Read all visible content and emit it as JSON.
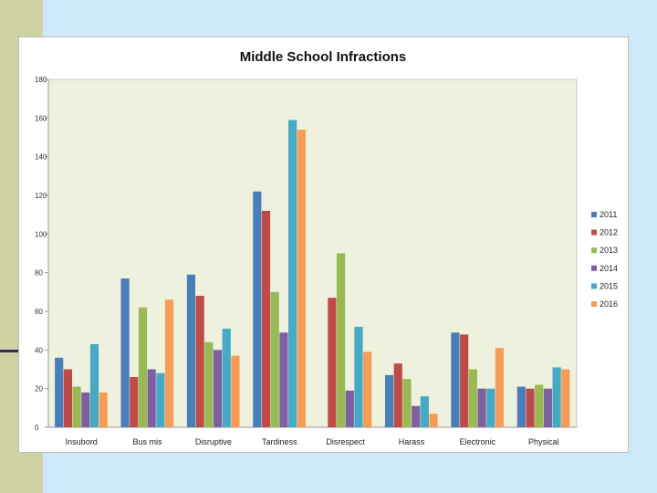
{
  "chart_data": {
    "type": "bar",
    "title": "Middle School Infractions",
    "xlabel": "",
    "ylabel": "",
    "categories": [
      "Insubord",
      "Bus mis",
      "Disruptive",
      "Tardiness",
      "Disrespect",
      "Harass",
      "Electronic",
      "Physical"
    ],
    "yticks": [
      "0",
      "20",
      "40",
      "60",
      "80",
      "100",
      "120",
      "140",
      "160",
      "180"
    ],
    "ylim": [
      0,
      180
    ],
    "grid": false,
    "legend_position": "right",
    "series": [
      {
        "name": "2011",
        "color": "#4a7ebb",
        "values": [
          36,
          77,
          79,
          122,
          0,
          27,
          49,
          21
        ]
      },
      {
        "name": "2012",
        "color": "#be4b48",
        "values": [
          30,
          26,
          68,
          112,
          67,
          33,
          48,
          20
        ]
      },
      {
        "name": "2013",
        "color": "#98b954",
        "values": [
          21,
          62,
          44,
          70,
          90,
          25,
          30,
          22
        ]
      },
      {
        "name": "2014",
        "color": "#7d60a0",
        "values": [
          18,
          30,
          40,
          49,
          19,
          11,
          20,
          20
        ]
      },
      {
        "name": "2015",
        "color": "#46aac5",
        "values": [
          43,
          28,
          51,
          159,
          52,
          16,
          20,
          31
        ]
      },
      {
        "name": "2016",
        "color": "#f59d56",
        "values": [
          18,
          66,
          37,
          154,
          39,
          7,
          41,
          30
        ]
      }
    ]
  }
}
